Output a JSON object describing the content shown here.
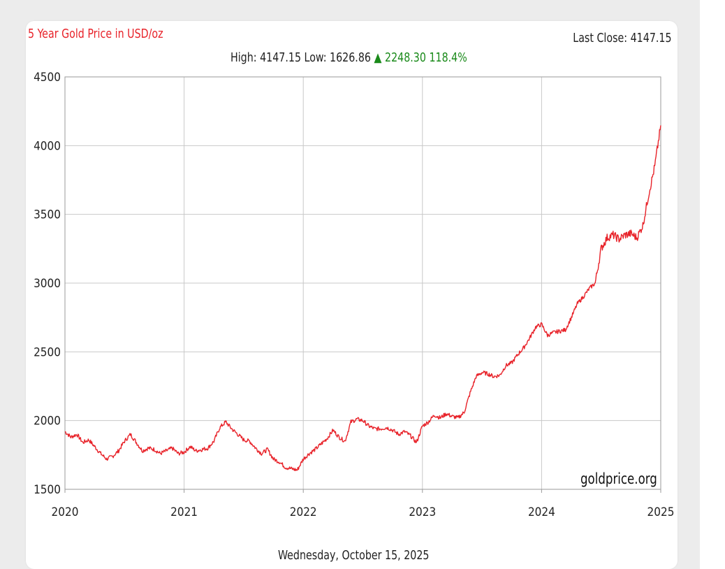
{
  "chart_data": {
    "type": "line",
    "title": "5 Year Gold Price in USD/oz",
    "last_close_label": "Last Close: 4147.15",
    "stats": {
      "high_label": "High: 4147.15",
      "low_label": "Low: 1626.86",
      "arrow": "▲",
      "change_label": "2248.30 118.4%"
    },
    "date_label": "Wednesday, October 15, 2025",
    "watermark": "goldprice.org",
    "xlim": [
      2020,
      2025
    ],
    "ylim": [
      1500,
      4500
    ],
    "x_ticks": [
      "2020",
      "2021",
      "2022",
      "2023",
      "2024",
      "2025"
    ],
    "y_ticks": [
      "1500",
      "2000",
      "2500",
      "3000",
      "3500",
      "4000",
      "4500"
    ],
    "grid": true,
    "line_color": "#e8232a",
    "series": [
      {
        "x": [
          2020.0,
          2020.05,
          2020.1,
          2020.15,
          2020.2,
          2020.25,
          2020.3,
          2020.35,
          2020.4,
          2020.45,
          2020.5,
          2020.55,
          2020.6,
          2020.65,
          2020.7,
          2020.75,
          2020.8,
          2020.85,
          2020.9,
          2020.95,
          2021.0,
          2021.05,
          2021.1,
          2021.15,
          2021.2,
          2021.25,
          2021.3,
          2021.35,
          2021.4,
          2021.45,
          2021.5,
          2021.55,
          2021.6,
          2021.65,
          2021.7,
          2021.75,
          2021.8,
          2021.85,
          2021.9,
          2021.95,
          2022.0,
          2022.05,
          2022.1,
          2022.15,
          2022.2,
          2022.25,
          2022.3,
          2022.35,
          2022.4,
          2022.45,
          2022.5,
          2022.55,
          2022.6,
          2022.65,
          2022.7,
          2022.75,
          2022.8,
          2022.85,
          2022.9,
          2022.95,
          2023.0,
          2023.05,
          2023.1,
          2023.15,
          2023.2,
          2023.25,
          2023.3,
          2023.35,
          2023.4,
          2023.45,
          2023.5,
          2023.55,
          2023.6,
          2023.65,
          2023.7,
          2023.75,
          2023.8,
          2023.85,
          2023.9,
          2023.95,
          2024.0,
          2024.05,
          2024.1,
          2024.15,
          2024.2,
          2024.25,
          2024.3,
          2024.35,
          2024.4,
          2024.45,
          2024.5,
          2024.55,
          2024.6,
          2024.65,
          2024.7,
          2024.75,
          2024.8,
          2024.85,
          2024.9,
          2024.95,
          2025.0
        ],
        "y": [
          1920,
          1880,
          1900,
          1840,
          1860,
          1810,
          1760,
          1720,
          1740,
          1780,
          1850,
          1900,
          1840,
          1780,
          1800,
          1790,
          1760,
          1780,
          1800,
          1760,
          1770,
          1810,
          1780,
          1790,
          1800,
          1850,
          1950,
          1990,
          1940,
          1900,
          1860,
          1850,
          1800,
          1760,
          1790,
          1720,
          1700,
          1660,
          1650,
          1640,
          1720,
          1760,
          1790,
          1830,
          1870,
          1930,
          1880,
          1850,
          1990,
          2010,
          2000,
          1960,
          1940,
          1940,
          1950,
          1930,
          1900,
          1920,
          1890,
          1840,
          1960,
          1990,
          2040,
          2020,
          2050,
          2030,
          2020,
          2060,
          2200,
          2320,
          2350,
          2340,
          2320,
          2330,
          2400,
          2420,
          2480,
          2530,
          2600,
          2680,
          2700,
          2620,
          2640,
          2650,
          2660,
          2750,
          2850,
          2900,
          2960,
          3000,
          3250,
          3330,
          3350,
          3320,
          3350,
          3360,
          3330,
          3420,
          3650,
          3850,
          4147.15
        ]
      }
    ]
  }
}
